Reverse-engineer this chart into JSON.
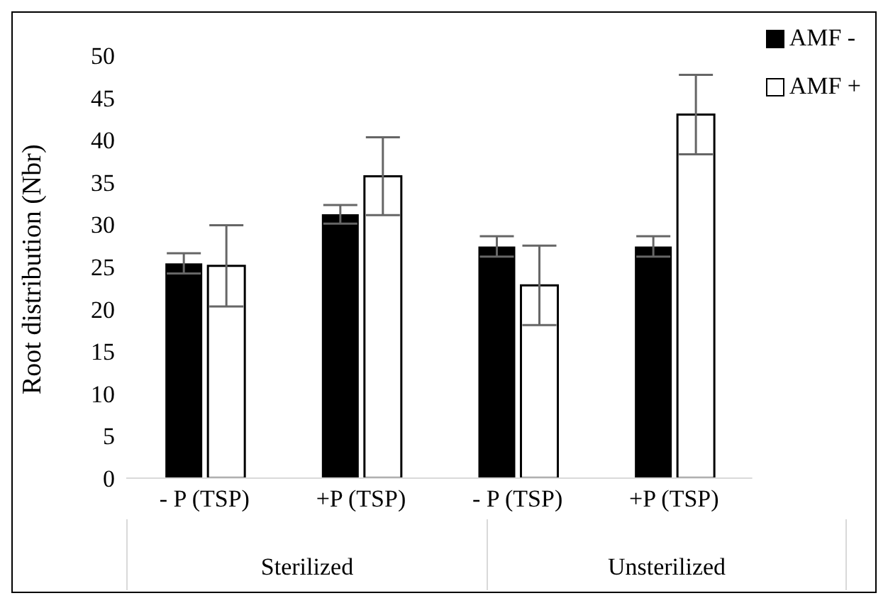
{
  "chart_data": {
    "type": "bar",
    "ylabel": "Root distribution (Nbr)",
    "categories": [
      "- P (TSP)",
      "+P (TSP)",
      "- P (TSP)",
      "+P (TSP)"
    ],
    "annotations": [
      "Sterilized",
      "Unsterilized"
    ],
    "series": [
      {
        "name": "AMF -",
        "color": "#000000",
        "values": [
          25.4,
          31.2,
          27.4,
          27.4
        ],
        "errors": [
          1.2,
          1.1,
          1.2,
          1.2
        ]
      },
      {
        "name": "AMF +",
        "color": "#ffffff",
        "values": [
          25.1,
          35.7,
          22.8,
          43.0
        ],
        "errors": [
          4.8,
          4.6,
          4.7,
          4.7
        ]
      }
    ],
    "ylim": [
      0,
      50
    ],
    "yticks": [
      0,
      5,
      10,
      15,
      20,
      25,
      30,
      35,
      40,
      45,
      50
    ],
    "legend": "top right"
  }
}
